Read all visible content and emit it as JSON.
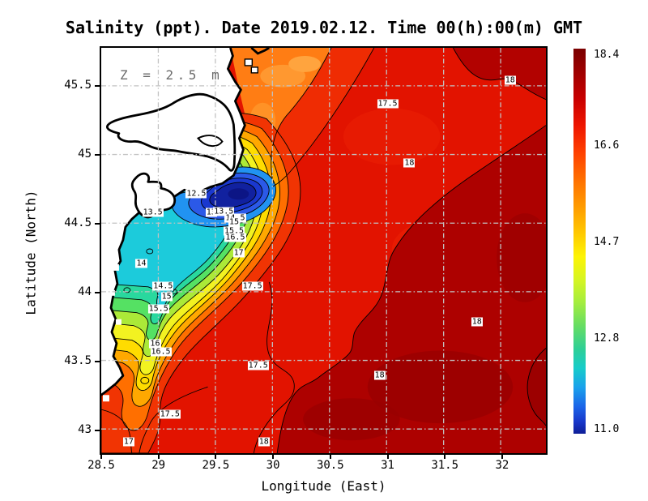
{
  "chart_data": {
    "type": "heatmap",
    "title": "Salinity (ppt). Date 2019.02.12. Time 00(h):00(m) GMT",
    "variable": "Salinity (ppt)",
    "date": "2019.02.12",
    "time": "00(h):00(m)",
    "timezone": "GMT",
    "depth_label": "Z = 2.5 m",
    "xlabel": "Longitude (East)",
    "ylabel": "Latitude (North)",
    "x_ticks": [
      "28.5",
      "29",
      "29.5",
      "30",
      "30.5",
      "31",
      "31.5",
      "32"
    ],
    "y_ticks": [
      "45.5",
      "45",
      "44.5",
      "44",
      "43.5",
      "43"
    ],
    "xlim": [
      28.5,
      32.4
    ],
    "ylim": [
      42.82,
      45.78
    ],
    "grid": "dash-dot every 0.5 degree",
    "colorbar": {
      "min": 11.0,
      "max": 18.4,
      "tick_labels": [
        "18.4",
        "16.6",
        "14.7",
        "12.8",
        "11.0"
      ],
      "palette": "jet"
    },
    "contour_interval": 0.5,
    "contour_levels": [
      12.5,
      13,
      13.5,
      14,
      14.5,
      15,
      15.5,
      16,
      16.5,
      17,
      17.5,
      18
    ],
    "contour_labels": [
      {
        "text": "12.5",
        "lon": 29.33,
        "lat": 44.72
      },
      {
        "text": "13.5",
        "lon": 28.95,
        "lat": 44.58
      },
      {
        "text": "13",
        "lon": 29.46,
        "lat": 44.58
      },
      {
        "text": "13.5",
        "lon": 29.57,
        "lat": 44.59
      },
      {
        "text": "14.5",
        "lon": 29.67,
        "lat": 44.54
      },
      {
        "text": "15",
        "lon": 29.66,
        "lat": 44.51
      },
      {
        "text": "15.5",
        "lon": 29.66,
        "lat": 44.45
      },
      {
        "text": "16.5",
        "lon": 29.67,
        "lat": 44.4
      },
      {
        "text": "17",
        "lon": 29.7,
        "lat": 44.29
      },
      {
        "text": "17.5",
        "lon": 29.82,
        "lat": 44.05
      },
      {
        "text": "14",
        "lon": 28.85,
        "lat": 44.21
      },
      {
        "text": "14.5",
        "lon": 29.04,
        "lat": 44.05
      },
      {
        "text": "15",
        "lon": 29.07,
        "lat": 43.97
      },
      {
        "text": "15.5",
        "lon": 29.0,
        "lat": 43.88
      },
      {
        "text": "16",
        "lon": 28.97,
        "lat": 43.63
      },
      {
        "text": "16.5",
        "lon": 29.02,
        "lat": 43.57
      },
      {
        "text": "17.5",
        "lon": 29.1,
        "lat": 43.12
      },
      {
        "text": "17",
        "lon": 28.74,
        "lat": 42.92
      },
      {
        "text": "17.5",
        "lon": 29.87,
        "lat": 43.47
      },
      {
        "text": "18",
        "lon": 29.92,
        "lat": 42.92
      },
      {
        "text": "17.5",
        "lon": 31.0,
        "lat": 45.37
      },
      {
        "text": "18",
        "lon": 32.07,
        "lat": 45.54
      },
      {
        "text": "18",
        "lon": 31.19,
        "lat": 44.94
      },
      {
        "text": "18",
        "lon": 31.78,
        "lat": 43.79
      },
      {
        "text": "18",
        "lon": 30.93,
        "lat": 43.4
      }
    ]
  }
}
